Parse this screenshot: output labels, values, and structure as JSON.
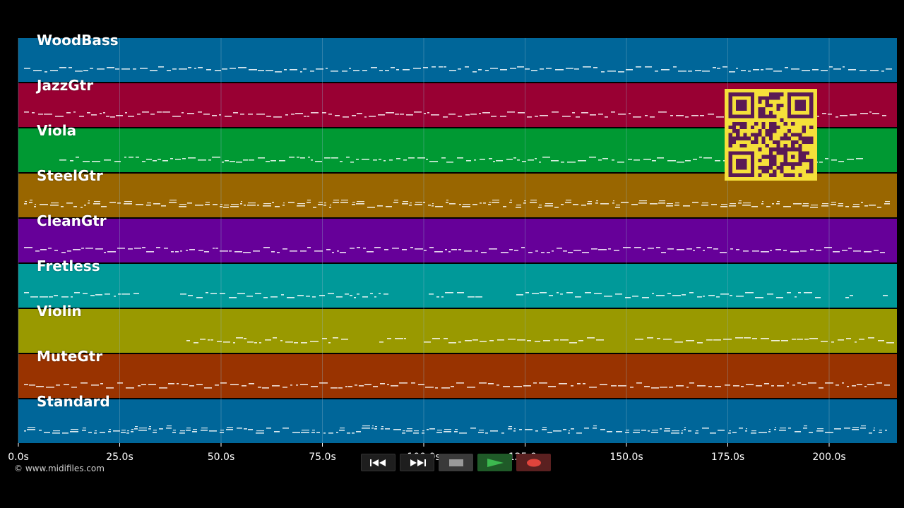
{
  "tracks": [
    {
      "name": "WoodBass",
      "color": "#006699"
    },
    {
      "name": "JazzGtr",
      "color": "#990033"
    },
    {
      "name": "Viola",
      "color": "#009933"
    },
    {
      "name": "SteelGtr",
      "color": "#996600"
    },
    {
      "name": "CleanGtr",
      "color": "#660099"
    },
    {
      "name": "Fretless",
      "color": "#009999"
    },
    {
      "name": "Violin",
      "color": "#999900"
    },
    {
      "name": "MuteGtr",
      "color": "#993300"
    },
    {
      "name": "Standard",
      "color": "#006699"
    }
  ],
  "timeline": {
    "ticks": [
      "0.0s",
      "25.0s",
      "50.0s",
      "75.0s",
      "100.0s",
      "125.0s",
      "150.0s",
      "175.0s",
      "200.0s"
    ]
  },
  "copyright": "© www.midifiles.com",
  "transport": {
    "rewind_icon": "rewind-icon",
    "forward_icon": "fast-forward-icon",
    "stop_icon": "stop-icon",
    "play_icon": "play-icon",
    "record_icon": "record-icon"
  },
  "qr_icon": "qr-code-icon",
  "colors": {
    "background": "#000000",
    "note": "#ffffff",
    "grid": "#8fb3c9",
    "qr_fg": "#5a1a55",
    "qr_bg": "#f5e03a"
  }
}
